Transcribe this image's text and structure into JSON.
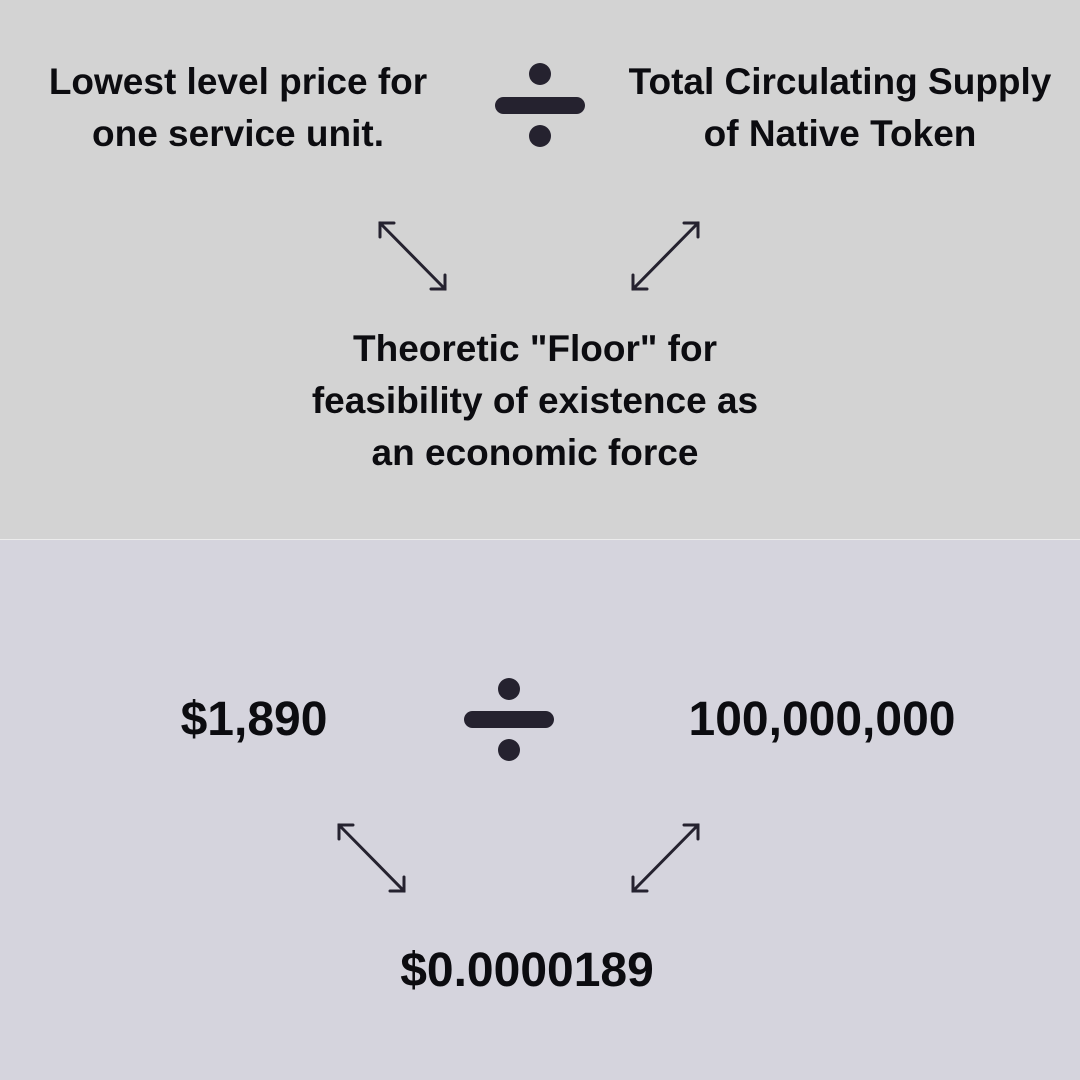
{
  "colors": {
    "top_background": "#d3d3d3",
    "bottom_background": "#d5d4dd",
    "divider": "#ececec",
    "text": "#0c0c10",
    "icon": "#25222f"
  },
  "formula": {
    "dividend": "Lowest level price for\none service unit.",
    "divisor": "Total Circulating Supply\nof Native Token",
    "operator_icon": "division-icon",
    "arrow_icon": "double-headed-diagonal-arrow-icon",
    "result": "Theoretic \"Floor\" for\nfeasibility of existence as\nan economic force"
  },
  "example": {
    "dividend": "$1,890",
    "divisor": "100,000,000",
    "operator_icon": "division-icon",
    "arrow_icon": "double-headed-diagonal-arrow-icon",
    "result": "$0.0000189"
  }
}
